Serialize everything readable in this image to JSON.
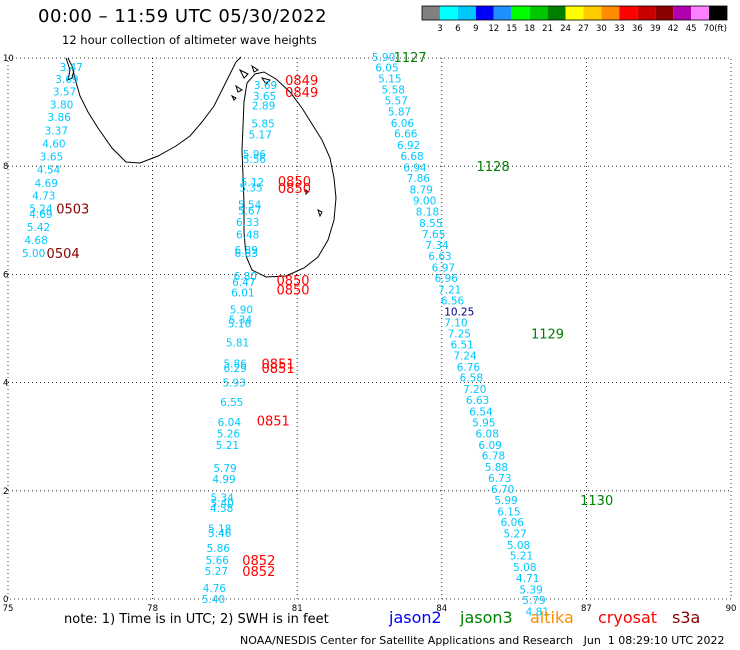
{
  "header": {
    "title": "00:00 – 11:59 UTC 05/30/2022",
    "subtitle": "12 hour collection of altimeter wave heights"
  },
  "colorbar": {
    "unit": "(ft)",
    "labels": [
      "3",
      "6",
      "9",
      "12",
      "15",
      "18",
      "21",
      "24",
      "27",
      "30",
      "33",
      "36",
      "39",
      "42",
      "45",
      "70"
    ],
    "colors": [
      "#808080",
      "#00ffff",
      "#00c8ff",
      "#0000ff",
      "#1e90ff",
      "#00ff00",
      "#00c800",
      "#008000",
      "#ffff00",
      "#ffcc00",
      "#ff8c00",
      "#ff0000",
      "#c80000",
      "#8b0000",
      "#b000b0",
      "#ff80ff",
      "#000000"
    ]
  },
  "chart_data": {
    "type": "scatter",
    "xlim": [
      75,
      90
    ],
    "ylim": [
      0,
      10
    ],
    "x_ticks": [
      "75",
      "78",
      "81",
      "84",
      "87",
      "90"
    ],
    "y_ticks": [
      "0",
      "2",
      "4",
      "6",
      "8",
      "10"
    ],
    "grid": true,
    "colors": {
      "jason2": "#0000ff",
      "jason3": "#008000",
      "altika": "#ff8c00",
      "cryosat": "#ff0000",
      "s3a": "#8b0000",
      "wave": "#00c8ff"
    },
    "wave_heights": [
      {
        "v": "3.47",
        "x": 76.07,
        "y": 9.83
      },
      {
        "v": "3.69",
        "x": 75.98,
        "y": 9.61
      },
      {
        "v": "3.57",
        "x": 75.93,
        "y": 9.38
      },
      {
        "v": "3.80",
        "x": 75.87,
        "y": 9.14
      },
      {
        "v": "3.86",
        "x": 75.82,
        "y": 8.91
      },
      {
        "v": "3.37",
        "x": 75.76,
        "y": 8.66
      },
      {
        "v": "4.60",
        "x": 75.71,
        "y": 8.42
      },
      {
        "v": "3.65",
        "x": 75.66,
        "y": 8.18
      },
      {
        "v": "4.54",
        "x": 75.6,
        "y": 7.94
      },
      {
        "v": "4.69",
        "x": 75.55,
        "y": 7.69
      },
      {
        "v": "4.73",
        "x": 75.5,
        "y": 7.46
      },
      {
        "v": "5.24",
        "x": 75.44,
        "y": 7.22
      },
      {
        "v": "4.69",
        "x": 75.44,
        "y": 7.12
      },
      {
        "v": "5.42",
        "x": 75.39,
        "y": 6.88
      },
      {
        "v": "4.68",
        "x": 75.34,
        "y": 6.64
      },
      {
        "v": "5.00",
        "x": 75.29,
        "y": 6.4
      },
      {
        "v": "3.69",
        "x": 80.1,
        "y": 9.5
      },
      {
        "v": "3.65",
        "x": 80.08,
        "y": 9.3
      },
      {
        "v": "2.89",
        "x": 80.06,
        "y": 9.12
      },
      {
        "v": "5.85",
        "x": 80.05,
        "y": 8.79
      },
      {
        "v": "5.17",
        "x": 79.99,
        "y": 8.59
      },
      {
        "v": "5.96",
        "x": 79.87,
        "y": 8.23
      },
      {
        "v": "5.56",
        "x": 79.87,
        "y": 8.13
      },
      {
        "v": "5.12",
        "x": 79.83,
        "y": 7.71
      },
      {
        "v": "5.35",
        "x": 79.8,
        "y": 7.61
      },
      {
        "v": "5.54",
        "x": 79.77,
        "y": 7.29
      },
      {
        "v": "5.67",
        "x": 79.77,
        "y": 7.18
      },
      {
        "v": "6.33",
        "x": 79.73,
        "y": 6.97
      },
      {
        "v": "6.48",
        "x": 79.73,
        "y": 6.74
      },
      {
        "v": "6.89",
        "x": 79.7,
        "y": 6.45
      },
      {
        "v": "6.83",
        "x": 79.7,
        "y": 6.4
      },
      {
        "v": "6.80",
        "x": 79.68,
        "y": 5.97
      },
      {
        "v": "6.47",
        "x": 79.65,
        "y": 5.86
      },
      {
        "v": "6.01",
        "x": 79.63,
        "y": 5.67
      },
      {
        "v": "5.90",
        "x": 79.6,
        "y": 5.35
      },
      {
        "v": "5.34",
        "x": 79.58,
        "y": 5.17
      },
      {
        "v": "5.16",
        "x": 79.56,
        "y": 5.09
      },
      {
        "v": "5.81",
        "x": 79.52,
        "y": 4.74
      },
      {
        "v": "5.86",
        "x": 79.47,
        "y": 4.35
      },
      {
        "v": "6.29",
        "x": 79.47,
        "y": 4.27
      },
      {
        "v": "5.93",
        "x": 79.45,
        "y": 4.0
      },
      {
        "v": "6.55",
        "x": 79.4,
        "y": 3.64
      },
      {
        "v": "6.04",
        "x": 79.35,
        "y": 3.27
      },
      {
        "v": "5.26",
        "x": 79.33,
        "y": 3.06
      },
      {
        "v": "5.21",
        "x": 79.31,
        "y": 2.85
      },
      {
        "v": "5.79",
        "x": 79.26,
        "y": 2.42
      },
      {
        "v": "4.99",
        "x": 79.24,
        "y": 2.22
      },
      {
        "v": "5.34",
        "x": 79.2,
        "y": 1.88
      },
      {
        "v": "5.40",
        "x": 79.2,
        "y": 1.77
      },
      {
        "v": "4.58",
        "x": 79.19,
        "y": 1.68
      },
      {
        "v": "5.18",
        "x": 79.15,
        "y": 1.3
      },
      {
        "v": "5.46",
        "x": 79.15,
        "y": 1.22
      },
      {
        "v": "5.86",
        "x": 79.12,
        "y": 0.94
      },
      {
        "v": "5.66",
        "x": 79.1,
        "y": 0.72
      },
      {
        "v": "5.27",
        "x": 79.08,
        "y": 0.52
      },
      {
        "v": "4.76",
        "x": 79.04,
        "y": 0.2
      },
      {
        "v": "5.40",
        "x": 79.02,
        "y": 0.0
      },
      {
        "v": "5.90",
        "x": 82.55,
        "y": 10.02
      },
      {
        "v": "6.05",
        "x": 82.62,
        "y": 9.82
      },
      {
        "v": "5.15",
        "x": 82.68,
        "y": 9.62
      },
      {
        "v": "5.58",
        "x": 82.75,
        "y": 9.42
      },
      {
        "v": "5.57",
        "x": 82.81,
        "y": 9.21
      },
      {
        "v": "5.87",
        "x": 82.88,
        "y": 9.01
      },
      {
        "v": "6.06",
        "x": 82.94,
        "y": 8.8
      },
      {
        "v": "6.66",
        "x": 83.01,
        "y": 8.6
      },
      {
        "v": "6.92",
        "x": 83.07,
        "y": 8.39
      },
      {
        "v": "6.68",
        "x": 83.14,
        "y": 8.19
      },
      {
        "v": "6.94",
        "x": 83.2,
        "y": 7.98
      },
      {
        "v": "7.86",
        "x": 83.27,
        "y": 7.78
      },
      {
        "v": "8.79",
        "x": 83.33,
        "y": 7.57
      },
      {
        "v": "9.00",
        "x": 83.4,
        "y": 7.37
      },
      {
        "v": "8.18",
        "x": 83.46,
        "y": 7.16
      },
      {
        "v": "8.55",
        "x": 83.53,
        "y": 6.95
      },
      {
        "v": "7.65",
        "x": 83.59,
        "y": 6.75
      },
      {
        "v": "7.34",
        "x": 83.66,
        "y": 6.54
      },
      {
        "v": "6.63",
        "x": 83.72,
        "y": 6.34
      },
      {
        "v": "6.97",
        "x": 83.79,
        "y": 6.13
      },
      {
        "v": "6.96",
        "x": 83.85,
        "y": 5.93
      },
      {
        "v": "7.21",
        "x": 83.92,
        "y": 5.72
      },
      {
        "v": "6.56",
        "x": 83.98,
        "y": 5.52
      },
      {
        "v": "7.10",
        "x": 84.05,
        "y": 5.11
      },
      {
        "v": "7.25",
        "x": 84.12,
        "y": 4.91
      },
      {
        "v": "6.51",
        "x": 84.18,
        "y": 4.7
      },
      {
        "v": "7.24",
        "x": 84.24,
        "y": 4.5
      },
      {
        "v": "6.76",
        "x": 84.31,
        "y": 4.29
      },
      {
        "v": "6.58",
        "x": 84.37,
        "y": 4.09
      },
      {
        "v": "7.20",
        "x": 84.44,
        "y": 3.88
      },
      {
        "v": "6.63",
        "x": 84.5,
        "y": 3.68
      },
      {
        "v": "6.54",
        "x": 84.57,
        "y": 3.47
      },
      {
        "v": "5.95",
        "x": 84.63,
        "y": 3.26
      },
      {
        "v": "6.08",
        "x": 84.7,
        "y": 3.06
      },
      {
        "v": "6.09",
        "x": 84.76,
        "y": 2.85
      },
      {
        "v": "6.78",
        "x": 84.83,
        "y": 2.65
      },
      {
        "v": "5.88",
        "x": 84.89,
        "y": 2.44
      },
      {
        "v": "6.73",
        "x": 84.96,
        "y": 2.24
      },
      {
        "v": "6.70",
        "x": 85.02,
        "y": 2.03
      },
      {
        "v": "5.99",
        "x": 85.09,
        "y": 1.83
      },
      {
        "v": "6.15",
        "x": 85.15,
        "y": 1.62
      },
      {
        "v": "6.06",
        "x": 85.22,
        "y": 1.42
      },
      {
        "v": "5.27",
        "x": 85.28,
        "y": 1.21
      },
      {
        "v": "5.08",
        "x": 85.35,
        "y": 1.0
      },
      {
        "v": "5.21",
        "x": 85.41,
        "y": 0.8
      },
      {
        "v": "5.08",
        "x": 85.48,
        "y": 0.59
      },
      {
        "v": "4.71",
        "x": 85.54,
        "y": 0.39
      },
      {
        "v": "5.39",
        "x": 85.61,
        "y": 0.18
      },
      {
        "v": "5.79",
        "x": 85.67,
        "y": -0.02
      },
      {
        "v": "4.81",
        "x": 85.74,
        "y": -0.23
      }
    ],
    "other_heights": [
      {
        "v": "10.25",
        "x": 84.05,
        "y": 5.31
      }
    ],
    "time_labels": [
      {
        "t": "0503",
        "x": 76.0,
        "y": 7.22,
        "sat": "s3a"
      },
      {
        "t": "0504",
        "x": 75.8,
        "y": 6.4,
        "sat": "s3a"
      },
      {
        "t": "0849",
        "x": 80.75,
        "y": 9.59,
        "sat": "cryosat"
      },
      {
        "t": "0849",
        "x": 80.75,
        "y": 9.37,
        "sat": "cryosat"
      },
      {
        "t": "0850",
        "x": 80.6,
        "y": 7.73,
        "sat": "cryosat"
      },
      {
        "t": "0850",
        "x": 80.6,
        "y": 7.6,
        "sat": "cryosat"
      },
      {
        "t": "0850",
        "x": 80.57,
        "y": 5.9,
        "sat": "cryosat"
      },
      {
        "t": "0850",
        "x": 80.57,
        "y": 5.72,
        "sat": "cryosat"
      },
      {
        "t": "0851",
        "x": 80.26,
        "y": 4.35,
        "sat": "cryosat"
      },
      {
        "t": "0851",
        "x": 80.26,
        "y": 4.27,
        "sat": "cryosat"
      },
      {
        "t": "0851",
        "x": 80.16,
        "y": 3.3,
        "sat": "cryosat"
      },
      {
        "t": "0852",
        "x": 79.86,
        "y": 0.72,
        "sat": "cryosat"
      },
      {
        "t": "0852",
        "x": 79.86,
        "y": 0.52,
        "sat": "cryosat"
      },
      {
        "t": "1127",
        "x": 83.0,
        "y": 10.02,
        "sat": "jason3"
      },
      {
        "t": "1128",
        "x": 84.72,
        "y": 8.0,
        "sat": "jason3"
      },
      {
        "t": "1129",
        "x": 85.85,
        "y": 4.91,
        "sat": "jason3"
      },
      {
        "t": "1130",
        "x": 86.87,
        "y": 1.83,
        "sat": "jason3"
      }
    ]
  },
  "footer": {
    "note": "note: 1) Time is in UTC; 2) SWH is in feet",
    "satellites": [
      {
        "name": "jason2",
        "color": "#0000ff"
      },
      {
        "name": "jason3",
        "color": "#008000"
      },
      {
        "name": "altika",
        "color": "#ff8c00"
      },
      {
        "name": "cryosat",
        "color": "#ff0000"
      },
      {
        "name": "s3a",
        "color": "#8b0000"
      }
    ],
    "credit": "NOAA/NESDIS Center for Satellite Applications and Research   Jun  1 08:29:10 UTC 2022"
  }
}
